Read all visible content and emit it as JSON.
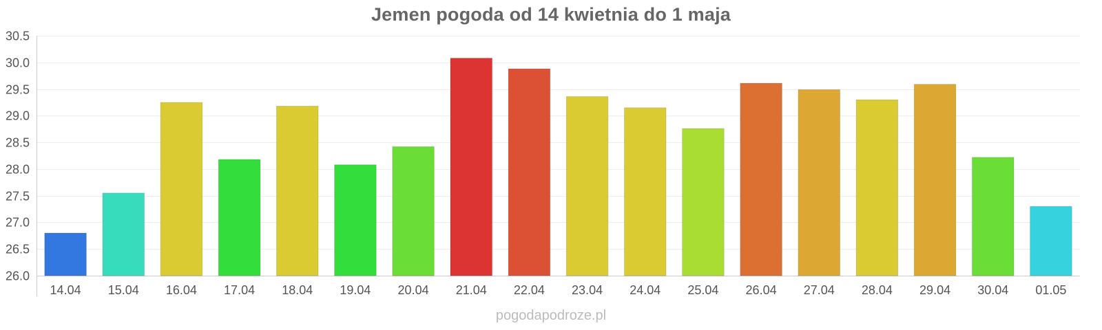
{
  "chart_data": {
    "type": "bar",
    "title": "Jemen pogoda od 14 kwietnia do 1 maja",
    "xlabel": "",
    "ylabel": "",
    "ylim": [
      26.0,
      30.5
    ],
    "yticks": [
      "26.0",
      "26.5",
      "27.0",
      "27.5",
      "28.0",
      "28.5",
      "29.0",
      "29.5",
      "30.0",
      "30.5"
    ],
    "categories": [
      "14.04",
      "15.04",
      "16.04",
      "17.04",
      "18.04",
      "19.04",
      "20.04",
      "21.04",
      "22.04",
      "23.04",
      "24.04",
      "25.04",
      "26.04",
      "27.04",
      "28.04",
      "29.04",
      "30.04",
      "01.05"
    ],
    "values": [
      26.8,
      27.55,
      29.25,
      28.18,
      29.18,
      28.08,
      28.42,
      30.08,
      29.88,
      29.36,
      29.15,
      28.76,
      29.61,
      29.49,
      29.3,
      29.59,
      28.22,
      27.3
    ],
    "colors": [
      "#3377e0",
      "#36dcbc",
      "#dbcb32",
      "#33dd3b",
      "#dbcb32",
      "#33dd3b",
      "#6ade36",
      "#dc3333",
      "#dc5133",
      "#dbcb32",
      "#dbcb32",
      "#aadd33",
      "#dc7033",
      "#dca833",
      "#dbcb32",
      "#dca833",
      "#6ade36",
      "#36d2dd"
    ],
    "grid": true,
    "legend": "none"
  },
  "watermark": "pogodapodroze.pl"
}
